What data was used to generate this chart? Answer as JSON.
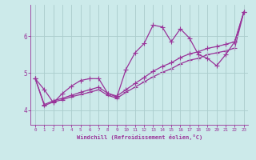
{
  "xlabel": "Windchill (Refroidissement éolien,°C)",
  "xlim": [
    -0.5,
    23.5
  ],
  "ylim": [
    3.6,
    6.85
  ],
  "xticks": [
    0,
    1,
    2,
    3,
    4,
    5,
    6,
    7,
    8,
    9,
    10,
    11,
    12,
    13,
    14,
    15,
    16,
    17,
    18,
    19,
    20,
    21,
    22,
    23
  ],
  "yticks": [
    4,
    5,
    6
  ],
  "bg_color": "#cceaea",
  "line_color": "#993399",
  "grid_color": "#aacccc",
  "markersize": 2.5,
  "linewidth": 0.9,
  "series1_x": [
    0,
    1,
    2,
    3,
    4,
    5,
    6,
    7,
    8,
    9,
    10,
    11,
    12,
    13,
    14,
    15,
    16,
    17,
    18,
    19,
    20,
    21,
    22,
    23
  ],
  "series1_y": [
    4.85,
    4.55,
    4.2,
    4.45,
    4.65,
    4.8,
    4.85,
    4.85,
    4.45,
    4.35,
    5.1,
    5.55,
    5.8,
    6.3,
    6.25,
    5.85,
    6.2,
    5.95,
    5.5,
    5.4,
    5.2,
    5.5,
    5.85,
    6.65
  ],
  "series2_x": [
    0,
    1,
    2,
    3,
    4,
    5,
    6,
    7,
    8,
    9,
    10,
    11,
    12,
    13,
    14,
    15,
    16,
    17,
    18,
    19,
    20,
    21,
    22,
    23
  ],
  "series2_y": [
    4.85,
    4.15,
    4.25,
    4.32,
    4.4,
    4.48,
    4.55,
    4.62,
    4.45,
    4.38,
    4.55,
    4.72,
    4.88,
    5.05,
    5.18,
    5.28,
    5.42,
    5.52,
    5.58,
    5.67,
    5.72,
    5.78,
    5.85,
    6.65
  ],
  "series3_x": [
    0,
    1,
    2,
    3,
    4,
    5,
    6,
    7,
    8,
    9,
    10,
    11,
    12,
    13,
    14,
    15,
    16,
    17,
    18,
    19,
    20,
    21,
    22,
    23
  ],
  "series3_y": [
    4.85,
    4.12,
    4.22,
    4.28,
    4.36,
    4.42,
    4.48,
    4.55,
    4.4,
    4.32,
    4.48,
    4.62,
    4.76,
    4.9,
    5.02,
    5.12,
    5.25,
    5.35,
    5.4,
    5.5,
    5.55,
    5.6,
    5.68,
    6.65
  ]
}
